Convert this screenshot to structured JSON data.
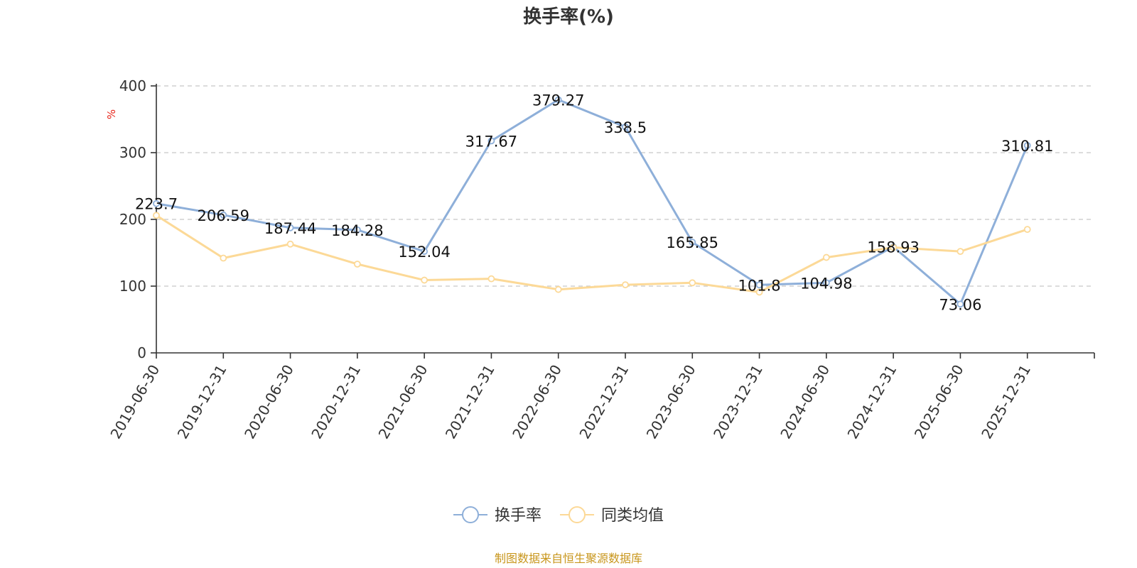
{
  "chart_data": {
    "type": "line",
    "title": "换手率(%)",
    "ylabel": "%",
    "xlabel": "",
    "ylim": [
      0,
      400
    ],
    "yticks": [
      0,
      100,
      200,
      300,
      400
    ],
    "grid": true,
    "legend_position": "bottom-center",
    "categories": [
      "2019-06-30",
      "2019-12-31",
      "2020-06-30",
      "2020-12-31",
      "2021-06-30",
      "2021-12-31",
      "2022-06-30",
      "2022-12-31",
      "2023-06-30",
      "2023-12-31",
      "2024-06-30",
      "2024-12-31",
      "2025-06-30",
      "2025-12-31"
    ],
    "series": [
      {
        "name": "换手率",
        "color": "#8eafd9",
        "show_labels": true,
        "values": [
          223.7,
          206.59,
          187.44,
          184.28,
          152.04,
          317.67,
          379.27,
          338.5,
          165.85,
          101.8,
          104.98,
          158.93,
          73.06,
          310.81
        ],
        "labels": [
          "223.7",
          "206.59",
          "187.44",
          "184.28",
          "152.04",
          "317.67",
          "379.27",
          "338.5",
          "165.85",
          "101.8",
          "104.98",
          "158.93",
          "73.06",
          "310.81"
        ]
      },
      {
        "name": "同类均值",
        "color": "#fcd997",
        "show_labels": false,
        "values": [
          206,
          142,
          163,
          133,
          109,
          111,
          95,
          102,
          105,
          91,
          143,
          158,
          152,
          185
        ]
      }
    ]
  },
  "source": "制图数据来自恒生聚源数据库"
}
